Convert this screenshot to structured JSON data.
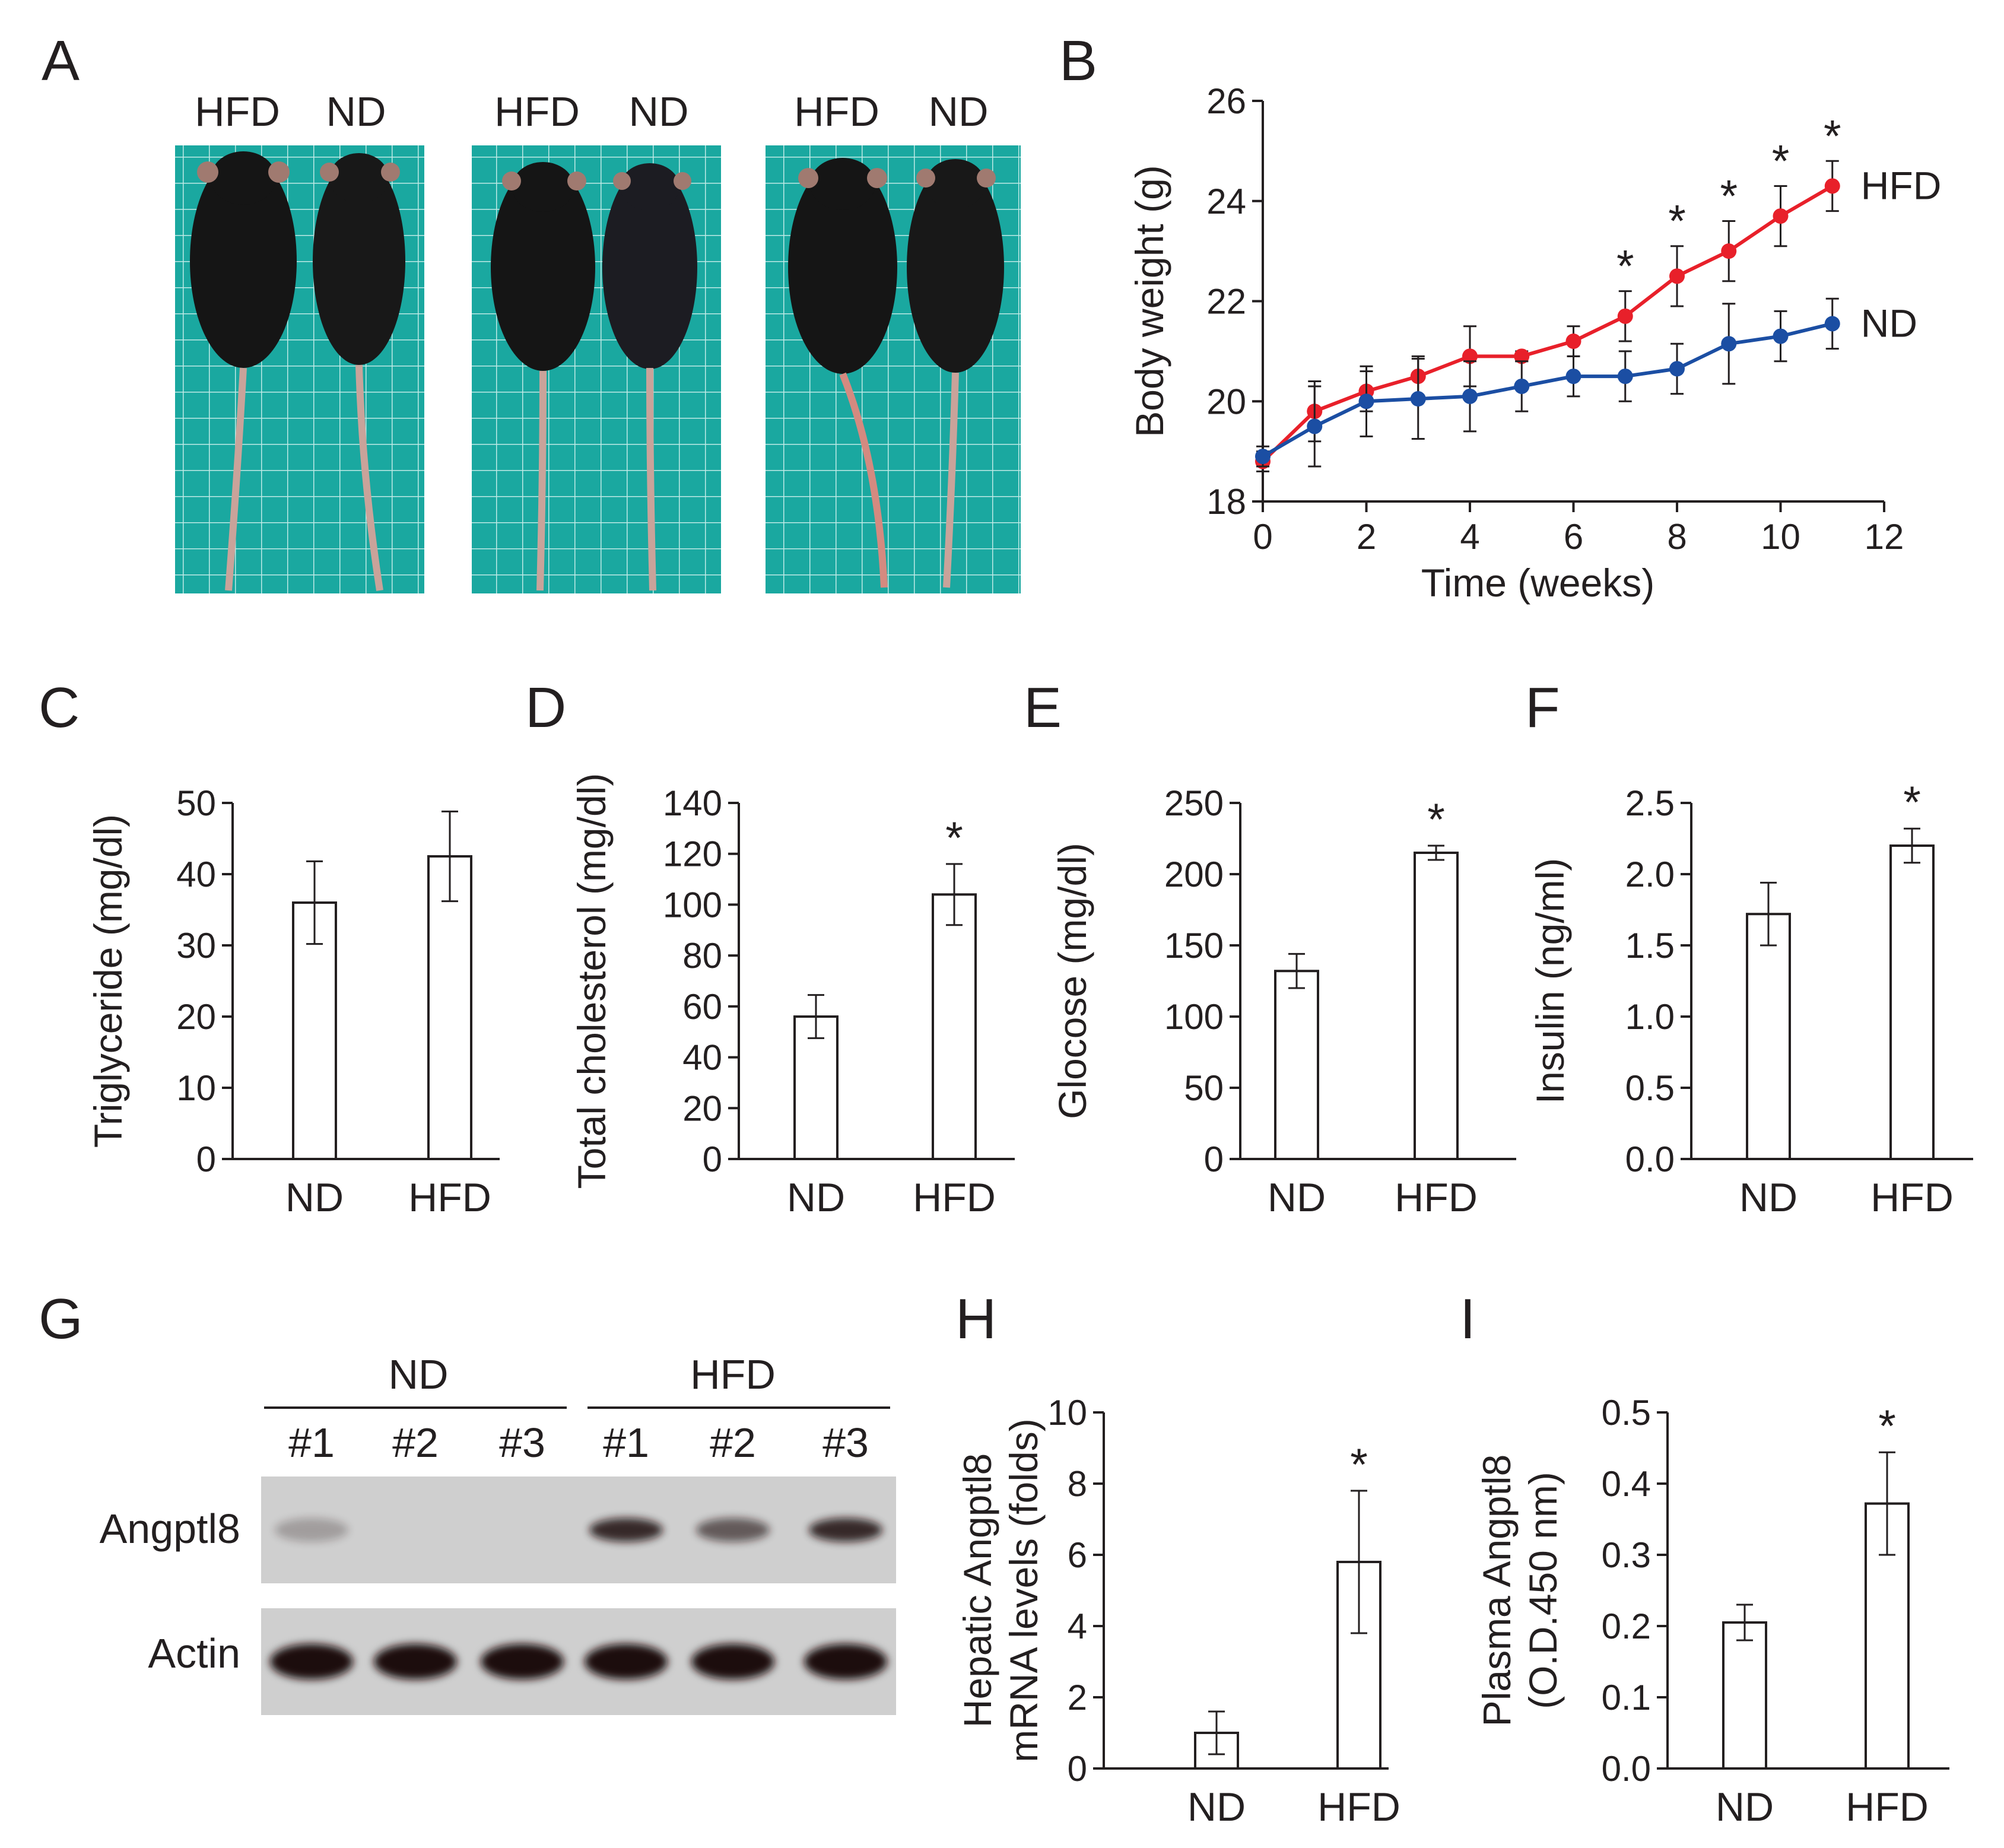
{
  "panels": {
    "A": {
      "letter": "A",
      "photos": [
        {
          "left": "HFD",
          "right": "ND"
        },
        {
          "left": "HFD",
          "right": "ND"
        },
        {
          "left": "HFD",
          "right": "ND"
        }
      ]
    },
    "B": {
      "letter": "B"
    },
    "C": {
      "letter": "C"
    },
    "D": {
      "letter": "D"
    },
    "E": {
      "letter": "E"
    },
    "F": {
      "letter": "F"
    },
    "G": {
      "letter": "G",
      "groups": [
        "ND",
        "HFD"
      ],
      "lanes": [
        "#1",
        "#2",
        "#3",
        "#1",
        "#2",
        "#3"
      ],
      "rows": [
        "Angptl8",
        "Actin"
      ],
      "angptl8_intensity": [
        0.25,
        0.0,
        0.0,
        0.85,
        0.6,
        0.85
      ],
      "actin_intensity": [
        1,
        1,
        1,
        1,
        1,
        1
      ]
    },
    "H": {
      "letter": "H"
    },
    "I": {
      "letter": "I"
    }
  },
  "colors": {
    "hfd": "#e8202a",
    "nd": "#1b4ea3",
    "blot_bg": "#cfcfcf",
    "tile": "#1aa8a0",
    "axis": "#231f20"
  },
  "chart_data": [
    {
      "id": "B",
      "type": "line",
      "xlabel": "Time (weeks)",
      "ylabel": "Body weight (g)",
      "xlim": [
        0,
        12
      ],
      "ylim": [
        18,
        26
      ],
      "xticks": [
        "0",
        "2",
        "4",
        "6",
        "8",
        "10",
        "12"
      ],
      "yticks": [
        "18",
        "20",
        "22",
        "24",
        "26"
      ],
      "x": [
        0,
        1,
        2,
        3,
        4,
        5,
        6,
        7,
        8,
        9,
        10,
        11
      ],
      "series": [
        {
          "name": "HFD",
          "color": "#e8202a",
          "values": [
            18.8,
            19.8,
            20.2,
            20.5,
            20.9,
            20.9,
            21.2,
            21.7,
            22.5,
            23.0,
            23.7,
            24.3
          ],
          "errors": [
            0.2,
            0.6,
            0.4,
            0.4,
            0.6,
            0.1,
            0.3,
            0.5,
            0.6,
            0.6,
            0.6,
            0.5
          ]
        },
        {
          "name": "ND",
          "color": "#1b4ea3",
          "values": [
            18.9,
            19.5,
            20.0,
            20.05,
            20.1,
            20.3,
            20.5,
            20.5,
            20.65,
            21.15,
            21.3,
            21.55
          ],
          "errors": [
            0.2,
            0.8,
            0.7,
            0.8,
            0.7,
            0.5,
            0.4,
            0.5,
            0.5,
            0.8,
            0.5,
            0.5
          ]
        }
      ],
      "significance": [
        7,
        8,
        9,
        10,
        11
      ],
      "star": "*"
    },
    {
      "id": "C",
      "type": "bar",
      "categories": [
        "ND",
        "HFD"
      ],
      "values": [
        36,
        42.5
      ],
      "errors": [
        5.8,
        6.3
      ],
      "ylabel": "Triglyceride (mg/dl)",
      "ylim": [
        0,
        50
      ],
      "yticks": [
        "0",
        "10",
        "20",
        "30",
        "40",
        "50"
      ],
      "significance": []
    },
    {
      "id": "D",
      "type": "bar",
      "categories": [
        "ND",
        "HFD"
      ],
      "values": [
        56,
        104
      ],
      "errors": [
        8.5,
        12
      ],
      "ylabel": "Total cholesterol (mg/dl)",
      "ylim": [
        0,
        140
      ],
      "yticks": [
        "0",
        "20",
        "40",
        "60",
        "80",
        "100",
        "120",
        "140"
      ],
      "significance": [
        "HFD"
      ],
      "star": "*"
    },
    {
      "id": "E",
      "type": "bar",
      "categories": [
        "ND",
        "HFD"
      ],
      "values": [
        132,
        215
      ],
      "errors": [
        12,
        5
      ],
      "ylabel": "Glocose (mg/dl)",
      "ylim": [
        0,
        250
      ],
      "yticks": [
        "0",
        "50",
        "100",
        "150",
        "200",
        "250"
      ],
      "significance": [
        "HFD"
      ],
      "star": "*"
    },
    {
      "id": "F",
      "type": "bar",
      "categories": [
        "ND",
        "HFD"
      ],
      "values": [
        1.72,
        2.2
      ],
      "errors": [
        0.22,
        0.12
      ],
      "ylabel": "Insulin (ng/ml)",
      "ylim": [
        0,
        2.5
      ],
      "yticks": [
        "0.0",
        "0.5",
        "1.0",
        "1.5",
        "2.0",
        "2.5"
      ],
      "significance": [
        "HFD"
      ],
      "star": "*"
    },
    {
      "id": "H",
      "type": "bar",
      "categories": [
        "ND",
        "HFD"
      ],
      "values": [
        1.0,
        5.8
      ],
      "errors": [
        0.6,
        2.0
      ],
      "ylabel": [
        "Hepatic Angptl8",
        "mRNA levels (folds)"
      ],
      "ylim": [
        0,
        10
      ],
      "yticks": [
        "0",
        "2",
        "4",
        "6",
        "8",
        "10"
      ],
      "significance": [
        "HFD"
      ],
      "star": "*"
    },
    {
      "id": "I",
      "type": "bar",
      "categories": [
        "ND",
        "HFD"
      ],
      "values": [
        0.205,
        0.372
      ],
      "errors": [
        0.025,
        0.072
      ],
      "ylabel": [
        "Plasma Angptl8",
        "(O.D.450 nm)"
      ],
      "ylim": [
        0,
        0.5
      ],
      "yticks": [
        "0.0",
        "0.1",
        "0.2",
        "0.3",
        "0.4",
        "0.5"
      ],
      "significance": [
        "HFD"
      ],
      "star": "*"
    }
  ]
}
